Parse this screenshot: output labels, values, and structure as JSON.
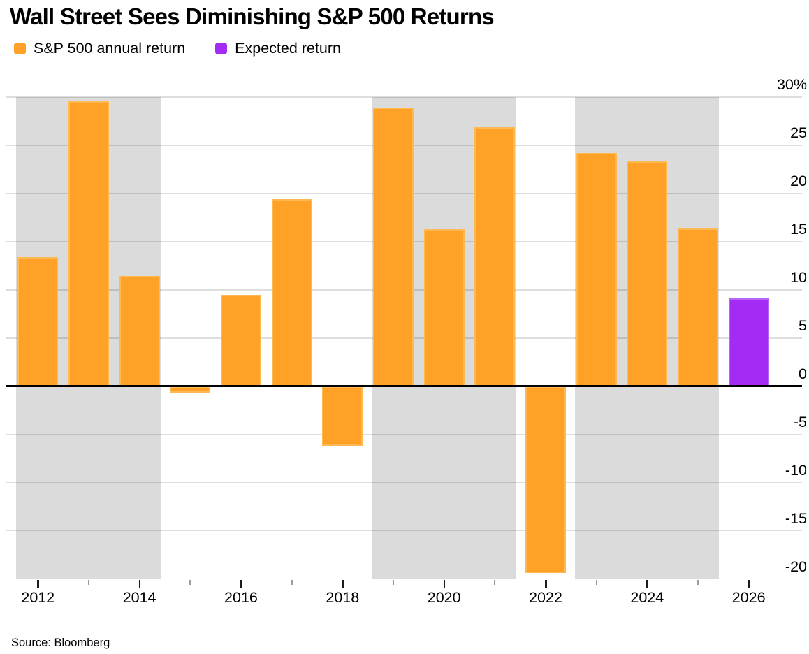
{
  "title": "Wall Street Sees Diminishing S&P 500 Returns",
  "legend": [
    {
      "label": "S&P 500 annual return",
      "color": "#FFA126"
    },
    {
      "label": "Expected return",
      "color": "#A42BF4"
    }
  ],
  "source": "Source: Bloomberg",
  "chart_data": {
    "type": "bar",
    "title": "Wall Street Sees Diminishing S&P 500 Returns",
    "xlabel": "",
    "ylabel": "",
    "x": [
      2012,
      2013,
      2014,
      2015,
      2016,
      2017,
      2018,
      2019,
      2020,
      2021,
      2022,
      2023,
      2024,
      2025,
      2026
    ],
    "series": [
      {
        "name": "S&P 500 annual return",
        "color": "#FFA126",
        "border": "#FFB953",
        "values": [
          13.4,
          29.6,
          11.4,
          -0.7,
          9.5,
          19.4,
          -6.2,
          28.9,
          16.3,
          26.9,
          -19.4,
          24.2,
          23.3,
          16.4,
          null
        ]
      },
      {
        "name": "Expected return",
        "color": "#A42BF4",
        "border": "#B863F8",
        "values": [
          null,
          null,
          null,
          null,
          null,
          null,
          null,
          null,
          null,
          null,
          null,
          null,
          null,
          null,
          9.1
        ]
      }
    ],
    "ylim": [
      -20,
      30
    ],
    "yticks": [
      30,
      25,
      20,
      15,
      10,
      5,
      0,
      -5,
      -10,
      -15,
      -20
    ],
    "ytick_top_label": "30%",
    "xtick_labels": [
      "2012",
      "2014",
      "2016",
      "2018",
      "2020",
      "2022",
      "2024",
      "2026"
    ],
    "grid": true,
    "legend_position": "top-left",
    "highlight_bands": [
      [
        2012,
        2014
      ],
      [
        2019,
        2021
      ],
      [
        2023,
        2025
      ]
    ],
    "colors": {
      "band_gray": "#DBDBDB",
      "zero_axis": "#000000",
      "grid_gray": "#D9D9D9",
      "tick_major": "#1A1A1A",
      "tick_minor": "#9B9B9B"
    }
  }
}
